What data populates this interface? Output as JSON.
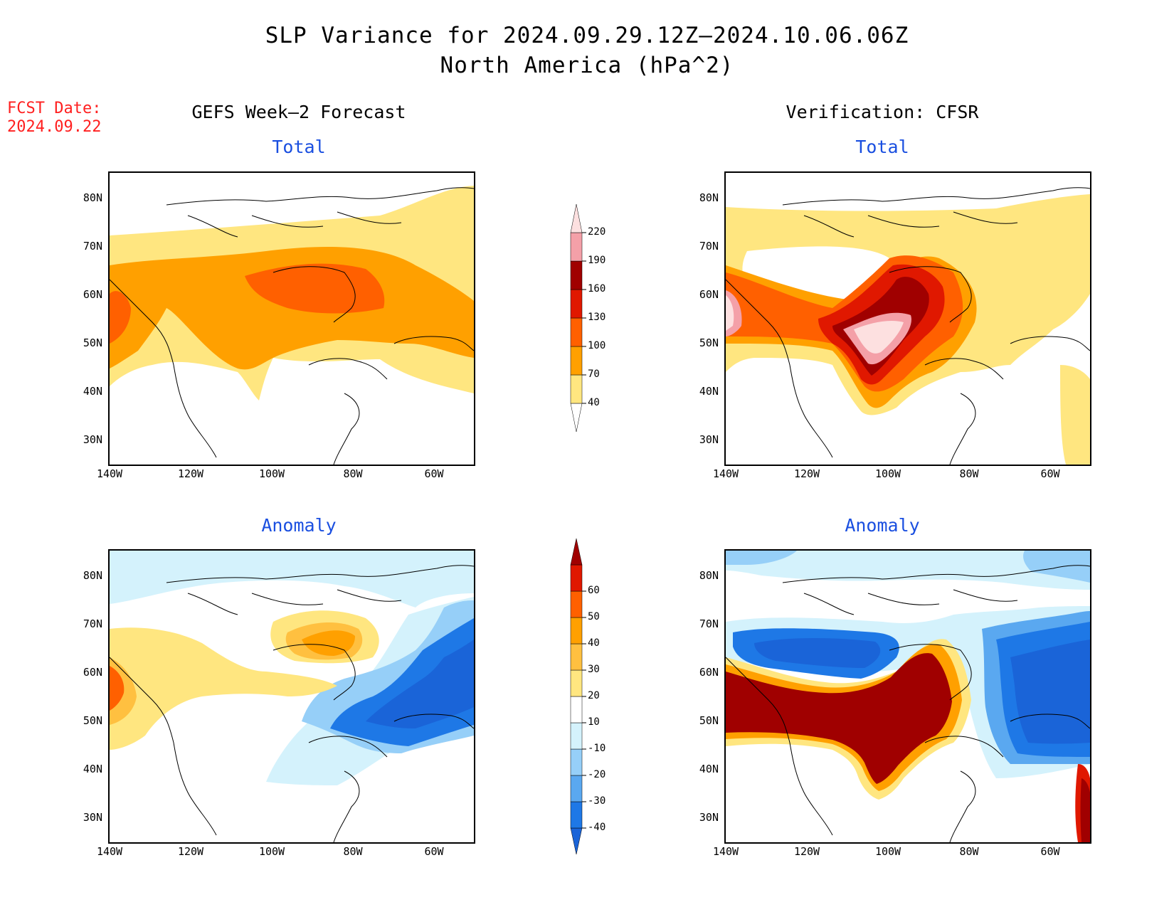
{
  "title": {
    "line1": "SLP Variance for 2024.09.29.12Z–2024.10.06.06Z",
    "line2": "North America (hPa^2)"
  },
  "fcst": {
    "label": "FCST Date:",
    "date": "2024.09.22"
  },
  "columns": {
    "left": "GEFS Week–2 Forecast",
    "right": "Verification: CFSR"
  },
  "panel_titles": {
    "total": "Total",
    "anomaly": "Anomaly"
  },
  "axes": {
    "lat_ticks": [
      "80N",
      "70N",
      "60N",
      "50N",
      "40N",
      "30N"
    ],
    "lon_ticks": [
      "140W",
      "120W",
      "100W",
      "80W",
      "60W"
    ]
  },
  "colorbars": {
    "total": {
      "labels": [
        "40",
        "70",
        "100",
        "130",
        "160",
        "190",
        "220"
      ],
      "colors": [
        "#ffffff",
        "#ffe680",
        "#ffa000",
        "#ff6000",
        "#e01800",
        "#a00000",
        "#f4a0a8",
        "#fde0e0"
      ]
    },
    "anomaly": {
      "labels": [
        "-40",
        "-30",
        "-20",
        "-10",
        "10",
        "20",
        "30",
        "40",
        "50",
        "60"
      ],
      "colors": [
        "#1a64d8",
        "#1e78e6",
        "#5aa8f0",
        "#96cff8",
        "#d4f2fc",
        "#ffffff",
        "#ffe680",
        "#ffc040",
        "#ffa000",
        "#ff6000",
        "#e01800",
        "#a00000"
      ]
    }
  },
  "map_colors": {
    "total": {
      "l1": "#ffe680",
      "l2": "#ffa000",
      "l3": "#ff6000",
      "l4": "#e01800",
      "l5": "#a00000",
      "l6": "#f4a0a8",
      "l7": "#fde0e0"
    },
    "anomaly": {
      "n1": "#d4f2fc",
      "n2": "#96cff8",
      "n3": "#5aa8f0",
      "n4": "#1e78e6",
      "n5": "#1a64d8",
      "p1": "#ffe680",
      "p2": "#ffc040",
      "p3": "#ffa000",
      "p4": "#ff6000",
      "p5": "#e01800",
      "p6": "#a00000"
    }
  }
}
